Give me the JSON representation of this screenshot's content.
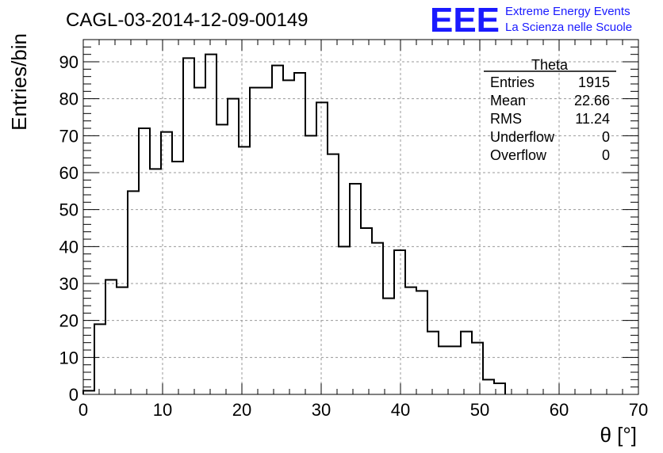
{
  "chart_data": {
    "type": "histogram",
    "title": "CAGL-03-2014-12-09-00149",
    "xlabel": "θ [°]",
    "ylabel": "Entries/bin",
    "xlim": [
      0,
      70
    ],
    "ylim": [
      0,
      96
    ],
    "grid": true,
    "bin_edges": [
      0,
      1.4,
      2.8,
      4.2,
      5.6,
      7,
      8.4,
      9.8,
      11.2,
      12.6,
      14,
      15.4,
      16.8,
      18.2,
      19.6,
      21,
      22.4,
      23.8,
      25.2,
      26.6,
      28,
      29.4,
      30.8,
      32.2,
      33.6,
      35,
      36.4,
      37.8,
      39.2,
      40.6,
      42,
      43.4,
      44.8,
      46.2,
      47.6,
      49,
      50.4,
      51.8,
      53.2
    ],
    "values": [
      1,
      19,
      31,
      29,
      55,
      72,
      61,
      71,
      63,
      91,
      83,
      92,
      73,
      80,
      67,
      83,
      83,
      89,
      85,
      87,
      70,
      79,
      65,
      40,
      57,
      45,
      41,
      26,
      39,
      29,
      28,
      17,
      13,
      13,
      17,
      14,
      4,
      3
    ],
    "x_ticks": [
      "0",
      "10",
      "20",
      "30",
      "40",
      "50",
      "60",
      "70"
    ],
    "y_ticks": [
      "0",
      "10",
      "20",
      "30",
      "40",
      "50",
      "60",
      "70",
      "80",
      "90"
    ]
  },
  "stats_box": {
    "title": "Theta",
    "rows": [
      {
        "label": "Entries",
        "value": "1915"
      },
      {
        "label": "Mean",
        "value": "22.66"
      },
      {
        "label": "RMS",
        "value": "11.24"
      },
      {
        "label": "Underflow",
        "value": "0"
      },
      {
        "label": "Overflow",
        "value": "0"
      }
    ]
  },
  "logo": {
    "letters": "EEE",
    "line1": "Extreme Energy Events",
    "line2": "La Scienza nelle Scuole",
    "color": "#1a1aff"
  }
}
